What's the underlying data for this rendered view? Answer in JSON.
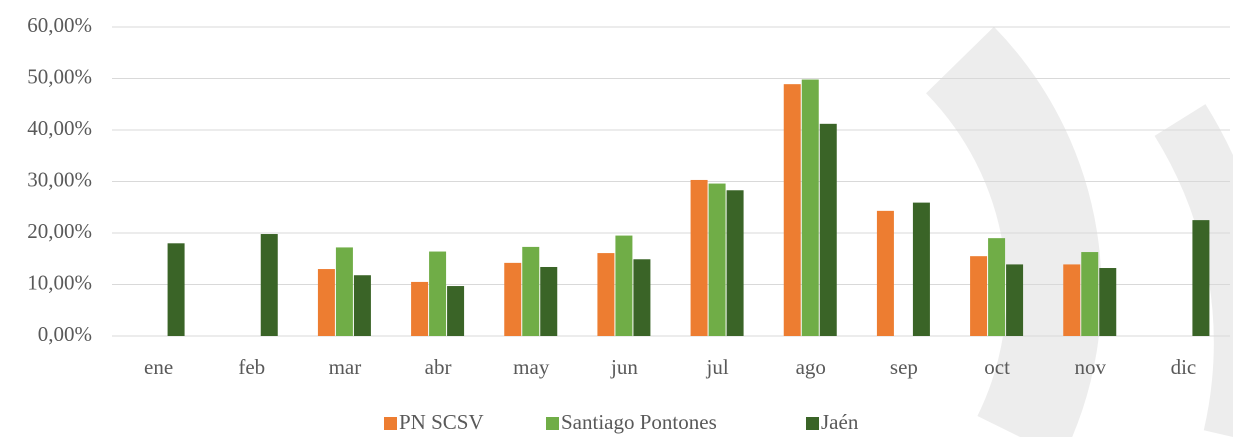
{
  "chart_data": {
    "type": "bar",
    "categories": [
      "ene",
      "feb",
      "mar",
      "abr",
      "may",
      "jun",
      "jul",
      "ago",
      "sep",
      "oct",
      "nov",
      "dic"
    ],
    "series": [
      {
        "name": "PN SCSV",
        "color": "#ed7d31",
        "values": [
          null,
          null,
          13.0,
          10.5,
          14.2,
          16.1,
          30.3,
          48.9,
          24.3,
          15.5,
          13.9,
          null
        ]
      },
      {
        "name": "Santiago Pontones",
        "color": "#70ad47",
        "values": [
          null,
          null,
          17.2,
          16.4,
          17.3,
          19.5,
          29.6,
          49.8,
          null,
          19.0,
          16.3,
          null
        ]
      },
      {
        "name": "Jaén",
        "color": "#3a6427",
        "values": [
          18.0,
          19.8,
          11.8,
          9.7,
          13.4,
          14.9,
          28.3,
          41.2,
          25.9,
          13.9,
          13.2,
          22.5
        ]
      }
    ],
    "ylim": [
      0,
      60
    ],
    "yticks": [
      {
        "value": 0,
        "label": "0,00%"
      },
      {
        "value": 10,
        "label": "10,00%"
      },
      {
        "value": 20,
        "label": "20,00%"
      },
      {
        "value": 30,
        "label": "30,00%"
      },
      {
        "value": 40,
        "label": "40,00%"
      },
      {
        "value": 50,
        "label": "50,00%"
      },
      {
        "value": 60,
        "label": "60,00%"
      }
    ],
    "grid": true,
    "legend": "bottom"
  }
}
